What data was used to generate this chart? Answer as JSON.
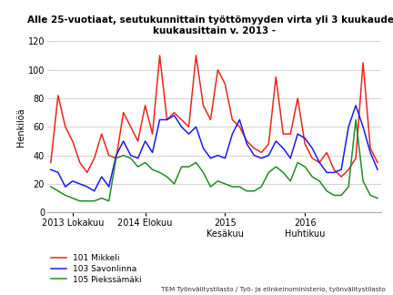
{
  "title_line1": "Alle 25-vuotiaat, seutukunnittain työttömyyden virta yli 3 kuukauden",
  "title_line2": "kuukausittain v. 2013 -",
  "ylabel": "Henkilöä",
  "source": "TEM Työnvälitystilasto / Työ- ja elinkeinoministerio, työnvälitystilasto",
  "legend": [
    "101 Mikkeli",
    "103 Savonlinna",
    "105 Piekssämäki"
  ],
  "colors": [
    "#e8261a",
    "#1a1aee",
    "#228B22"
  ],
  "xtick_labels": [
    "2013 Lokakuu",
    "2014 Elokuu",
    "2015\nKesäkuu",
    "2016\nHuhtikuu"
  ],
  "xtick_positions": [
    3,
    13,
    24,
    35
  ],
  "ylim": [
    0,
    120
  ],
  "yticks": [
    0,
    20,
    40,
    60,
    80,
    100,
    120
  ],
  "mikkeli": [
    35,
    82,
    60,
    50,
    35,
    28,
    38,
    55,
    40,
    38,
    70,
    60,
    50,
    75,
    55,
    110,
    65,
    70,
    65,
    60,
    110,
    75,
    65,
    100,
    90,
    65,
    60,
    50,
    45,
    42,
    48,
    95,
    55,
    55,
    80,
    48,
    38,
    35,
    42,
    30,
    25,
    30,
    38,
    105,
    45,
    35
  ],
  "savonlinna": [
    30,
    28,
    18,
    22,
    20,
    18,
    15,
    25,
    18,
    40,
    50,
    40,
    38,
    50,
    42,
    65,
    65,
    68,
    60,
    55,
    60,
    45,
    38,
    40,
    38,
    55,
    65,
    48,
    40,
    38,
    40,
    50,
    45,
    38,
    55,
    52,
    45,
    35,
    28,
    28,
    30,
    60,
    75,
    60,
    42,
    30
  ],
  "pieksämäki": [
    18,
    15,
    12,
    10,
    8,
    8,
    8,
    10,
    8,
    38,
    40,
    38,
    32,
    35,
    30,
    28,
    25,
    20,
    32,
    32,
    35,
    28,
    18,
    22,
    20,
    18,
    18,
    15,
    15,
    18,
    28,
    32,
    28,
    22,
    35,
    32,
    25,
    22,
    15,
    12,
    12,
    18,
    65,
    22,
    12,
    10
  ]
}
